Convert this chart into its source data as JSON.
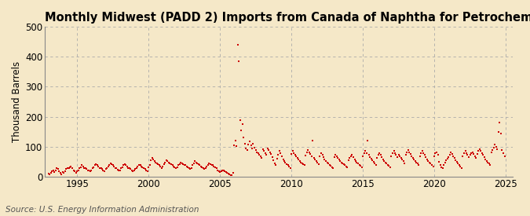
{
  "title": "Monthly Midwest (PADD 2) Imports from Canada of Naphtha for Petrochemical Feedstock Use",
  "ylabel": "Thousand Barrels",
  "source": "Source: U.S. Energy Information Administration",
  "background_color": "#f5e8c8",
  "plot_background_color": "#f5e8c8",
  "marker_color": "#cc0000",
  "grid_color": "#aaaaaa",
  "ylim": [
    0,
    500
  ],
  "yticks": [
    0,
    100,
    200,
    300,
    400,
    500
  ],
  "xlim_start": 1992.75,
  "xlim_end": 2025.5,
  "xticks": [
    1995,
    2000,
    2005,
    2010,
    2015,
    2020,
    2025
  ],
  "title_fontsize": 10.5,
  "axis_fontsize": 8.5,
  "source_fontsize": 7.5,
  "marker_size": 4,
  "data_xy": [
    [
      1993.0,
      10
    ],
    [
      1993.08,
      8
    ],
    [
      1993.17,
      12
    ],
    [
      1993.25,
      18
    ],
    [
      1993.33,
      22
    ],
    [
      1993.42,
      15
    ],
    [
      1993.5,
      20
    ],
    [
      1993.58,
      28
    ],
    [
      1993.67,
      25
    ],
    [
      1993.75,
      18
    ],
    [
      1993.83,
      12
    ],
    [
      1993.92,
      8
    ],
    [
      1994.0,
      15
    ],
    [
      1994.08,
      12
    ],
    [
      1994.17,
      18
    ],
    [
      1994.25,
      25
    ],
    [
      1994.33,
      30
    ],
    [
      1994.42,
      28
    ],
    [
      1994.5,
      32
    ],
    [
      1994.58,
      35
    ],
    [
      1994.67,
      28
    ],
    [
      1994.75,
      22
    ],
    [
      1994.83,
      18
    ],
    [
      1994.92,
      14
    ],
    [
      1995.0,
      18
    ],
    [
      1995.08,
      22
    ],
    [
      1995.17,
      28
    ],
    [
      1995.25,
      32
    ],
    [
      1995.33,
      38
    ],
    [
      1995.42,
      35
    ],
    [
      1995.5,
      30
    ],
    [
      1995.58,
      28
    ],
    [
      1995.67,
      25
    ],
    [
      1995.75,
      22
    ],
    [
      1995.83,
      20
    ],
    [
      1995.92,
      18
    ],
    [
      1996.0,
      22
    ],
    [
      1996.08,
      28
    ],
    [
      1996.17,
      32
    ],
    [
      1996.25,
      38
    ],
    [
      1996.33,
      42
    ],
    [
      1996.42,
      38
    ],
    [
      1996.5,
      35
    ],
    [
      1996.58,
      30
    ],
    [
      1996.67,
      28
    ],
    [
      1996.75,
      25
    ],
    [
      1996.83,
      22
    ],
    [
      1996.92,
      18
    ],
    [
      1997.0,
      25
    ],
    [
      1997.08,
      30
    ],
    [
      1997.17,
      35
    ],
    [
      1997.25,
      40
    ],
    [
      1997.33,
      45
    ],
    [
      1997.42,
      42
    ],
    [
      1997.5,
      38
    ],
    [
      1997.58,
      35
    ],
    [
      1997.67,
      30
    ],
    [
      1997.75,
      28
    ],
    [
      1997.83,
      24
    ],
    [
      1997.92,
      20
    ],
    [
      1998.0,
      22
    ],
    [
      1998.08,
      28
    ],
    [
      1998.17,
      32
    ],
    [
      1998.25,
      38
    ],
    [
      1998.33,
      42
    ],
    [
      1998.42,
      40
    ],
    [
      1998.5,
      35
    ],
    [
      1998.58,
      30
    ],
    [
      1998.67,
      28
    ],
    [
      1998.75,
      25
    ],
    [
      1998.83,
      22
    ],
    [
      1998.92,
      18
    ],
    [
      1999.0,
      20
    ],
    [
      1999.08,
      25
    ],
    [
      1999.17,
      30
    ],
    [
      1999.25,
      35
    ],
    [
      1999.33,
      40
    ],
    [
      1999.42,
      38
    ],
    [
      1999.5,
      35
    ],
    [
      1999.58,
      32
    ],
    [
      1999.67,
      28
    ],
    [
      1999.75,
      25
    ],
    [
      1999.83,
      22
    ],
    [
      1999.92,
      18
    ],
    [
      2000.0,
      32
    ],
    [
      2000.08,
      40
    ],
    [
      2000.17,
      55
    ],
    [
      2000.25,
      62
    ],
    [
      2000.33,
      58
    ],
    [
      2000.42,
      52
    ],
    [
      2000.5,
      48
    ],
    [
      2000.58,
      45
    ],
    [
      2000.67,
      42
    ],
    [
      2000.75,
      38
    ],
    [
      2000.83,
      35
    ],
    [
      2000.92,
      30
    ],
    [
      2001.0,
      35
    ],
    [
      2001.08,
      42
    ],
    [
      2001.17,
      48
    ],
    [
      2001.25,
      55
    ],
    [
      2001.33,
      52
    ],
    [
      2001.42,
      48
    ],
    [
      2001.5,
      45
    ],
    [
      2001.58,
      42
    ],
    [
      2001.67,
      38
    ],
    [
      2001.75,
      35
    ],
    [
      2001.83,
      32
    ],
    [
      2001.92,
      28
    ],
    [
      2002.0,
      32
    ],
    [
      2002.08,
      38
    ],
    [
      2002.17,
      42
    ],
    [
      2002.25,
      48
    ],
    [
      2002.33,
      45
    ],
    [
      2002.42,
      42
    ],
    [
      2002.5,
      40
    ],
    [
      2002.58,
      38
    ],
    [
      2002.67,
      35
    ],
    [
      2002.75,
      32
    ],
    [
      2002.83,
      28
    ],
    [
      2002.92,
      25
    ],
    [
      2003.0,
      30
    ],
    [
      2003.08,
      38
    ],
    [
      2003.17,
      45
    ],
    [
      2003.25,
      52
    ],
    [
      2003.33,
      48
    ],
    [
      2003.42,
      45
    ],
    [
      2003.5,
      42
    ],
    [
      2003.58,
      38
    ],
    [
      2003.67,
      35
    ],
    [
      2003.75,
      32
    ],
    [
      2003.83,
      28
    ],
    [
      2003.92,
      25
    ],
    [
      2004.0,
      28
    ],
    [
      2004.08,
      35
    ],
    [
      2004.17,
      40
    ],
    [
      2004.25,
      45
    ],
    [
      2004.33,
      42
    ],
    [
      2004.42,
      40
    ],
    [
      2004.5,
      38
    ],
    [
      2004.58,
      35
    ],
    [
      2004.67,
      32
    ],
    [
      2004.75,
      28
    ],
    [
      2004.83,
      22
    ],
    [
      2004.92,
      18
    ],
    [
      2005.0,
      15
    ],
    [
      2005.08,
      18
    ],
    [
      2005.17,
      20
    ],
    [
      2005.25,
      22
    ],
    [
      2005.33,
      18
    ],
    [
      2005.42,
      15
    ],
    [
      2005.5,
      12
    ],
    [
      2005.58,
      10
    ],
    [
      2005.67,
      8
    ],
    [
      2005.75,
      6
    ],
    [
      2005.83,
      5
    ],
    [
      2005.92,
      12
    ],
    [
      2006.0,
      105
    ],
    [
      2006.08,
      120
    ],
    [
      2006.17,
      102
    ],
    [
      2006.25,
      440
    ],
    [
      2006.33,
      385
    ],
    [
      2006.42,
      188
    ],
    [
      2006.5,
      155
    ],
    [
      2006.58,
      175
    ],
    [
      2006.67,
      130
    ],
    [
      2006.75,
      110
    ],
    [
      2006.83,
      95
    ],
    [
      2006.92,
      88
    ],
    [
      2007.0,
      108
    ],
    [
      2007.08,
      118
    ],
    [
      2007.17,
      105
    ],
    [
      2007.25,
      95
    ],
    [
      2007.33,
      110
    ],
    [
      2007.42,
      98
    ],
    [
      2007.5,
      88
    ],
    [
      2007.58,
      82
    ],
    [
      2007.67,
      78
    ],
    [
      2007.75,
      72
    ],
    [
      2007.83,
      68
    ],
    [
      2007.92,
      62
    ],
    [
      2008.0,
      92
    ],
    [
      2008.08,
      85
    ],
    [
      2008.17,
      78
    ],
    [
      2008.25,
      72
    ],
    [
      2008.33,
      95
    ],
    [
      2008.42,
      88
    ],
    [
      2008.5,
      82
    ],
    [
      2008.58,
      75
    ],
    [
      2008.67,
      65
    ],
    [
      2008.75,
      55
    ],
    [
      2008.83,
      45
    ],
    [
      2008.92,
      38
    ],
    [
      2009.0,
      60
    ],
    [
      2009.08,
      72
    ],
    [
      2009.17,
      85
    ],
    [
      2009.25,
      78
    ],
    [
      2009.33,
      68
    ],
    [
      2009.42,
      58
    ],
    [
      2009.5,
      52
    ],
    [
      2009.58,
      48
    ],
    [
      2009.67,
      42
    ],
    [
      2009.75,
      38
    ],
    [
      2009.83,
      35
    ],
    [
      2009.92,
      30
    ],
    [
      2010.0,
      75
    ],
    [
      2010.08,
      85
    ],
    [
      2010.17,
      78
    ],
    [
      2010.25,
      72
    ],
    [
      2010.33,
      68
    ],
    [
      2010.42,
      62
    ],
    [
      2010.5,
      58
    ],
    [
      2010.58,
      52
    ],
    [
      2010.67,
      48
    ],
    [
      2010.75,
      45
    ],
    [
      2010.83,
      42
    ],
    [
      2010.92,
      38
    ],
    [
      2011.0,
      70
    ],
    [
      2011.08,
      80
    ],
    [
      2011.17,
      90
    ],
    [
      2011.25,
      82
    ],
    [
      2011.33,
      75
    ],
    [
      2011.42,
      68
    ],
    [
      2011.5,
      120
    ],
    [
      2011.58,
      62
    ],
    [
      2011.67,
      58
    ],
    [
      2011.75,
      52
    ],
    [
      2011.83,
      48
    ],
    [
      2011.92,
      42
    ],
    [
      2012.0,
      68
    ],
    [
      2012.08,
      78
    ],
    [
      2012.17,
      72
    ],
    [
      2012.25,
      65
    ],
    [
      2012.33,
      58
    ],
    [
      2012.42,
      52
    ],
    [
      2012.5,
      48
    ],
    [
      2012.58,
      44
    ],
    [
      2012.67,
      40
    ],
    [
      2012.75,
      36
    ],
    [
      2012.83,
      32
    ],
    [
      2012.92,
      28
    ],
    [
      2013.0,
      65
    ],
    [
      2013.08,
      72
    ],
    [
      2013.17,
      68
    ],
    [
      2013.25,
      62
    ],
    [
      2013.33,
      58
    ],
    [
      2013.42,
      52
    ],
    [
      2013.5,
      48
    ],
    [
      2013.58,
      45
    ],
    [
      2013.67,
      42
    ],
    [
      2013.75,
      38
    ],
    [
      2013.83,
      35
    ],
    [
      2013.92,
      32
    ],
    [
      2014.0,
      55
    ],
    [
      2014.08,
      62
    ],
    [
      2014.17,
      68
    ],
    [
      2014.25,
      72
    ],
    [
      2014.33,
      65
    ],
    [
      2014.42,
      58
    ],
    [
      2014.5,
      52
    ],
    [
      2014.58,
      48
    ],
    [
      2014.67,
      44
    ],
    [
      2014.75,
      40
    ],
    [
      2014.83,
      36
    ],
    [
      2014.92,
      32
    ],
    [
      2015.0,
      68
    ],
    [
      2015.08,
      78
    ],
    [
      2015.17,
      85
    ],
    [
      2015.25,
      78
    ],
    [
      2015.33,
      120
    ],
    [
      2015.42,
      72
    ],
    [
      2015.5,
      65
    ],
    [
      2015.58,
      60
    ],
    [
      2015.67,
      55
    ],
    [
      2015.75,
      50
    ],
    [
      2015.83,
      45
    ],
    [
      2015.92,
      40
    ],
    [
      2016.0,
      62
    ],
    [
      2016.08,
      72
    ],
    [
      2016.17,
      78
    ],
    [
      2016.25,
      72
    ],
    [
      2016.33,
      65
    ],
    [
      2016.42,
      58
    ],
    [
      2016.5,
      52
    ],
    [
      2016.58,
      48
    ],
    [
      2016.67,
      44
    ],
    [
      2016.75,
      40
    ],
    [
      2016.83,
      36
    ],
    [
      2016.92,
      32
    ],
    [
      2017.0,
      68
    ],
    [
      2017.08,
      78
    ],
    [
      2017.17,
      85
    ],
    [
      2017.25,
      78
    ],
    [
      2017.33,
      72
    ],
    [
      2017.42,
      65
    ],
    [
      2017.5,
      72
    ],
    [
      2017.58,
      68
    ],
    [
      2017.67,
      62
    ],
    [
      2017.75,
      58
    ],
    [
      2017.83,
      52
    ],
    [
      2017.92,
      45
    ],
    [
      2018.0,
      72
    ],
    [
      2018.08,
      82
    ],
    [
      2018.17,
      88
    ],
    [
      2018.25,
      80
    ],
    [
      2018.33,
      75
    ],
    [
      2018.42,
      68
    ],
    [
      2018.5,
      62
    ],
    [
      2018.58,
      58
    ],
    [
      2018.67,
      52
    ],
    [
      2018.75,
      48
    ],
    [
      2018.83,
      44
    ],
    [
      2018.92,
      40
    ],
    [
      2019.0,
      68
    ],
    [
      2019.08,
      78
    ],
    [
      2019.17,
      85
    ],
    [
      2019.25,
      78
    ],
    [
      2019.33,
      72
    ],
    [
      2019.42,
      65
    ],
    [
      2019.5,
      58
    ],
    [
      2019.58,
      52
    ],
    [
      2019.67,
      48
    ],
    [
      2019.75,
      44
    ],
    [
      2019.83,
      40
    ],
    [
      2019.92,
      35
    ],
    [
      2020.0,
      68
    ],
    [
      2020.08,
      78
    ],
    [
      2020.17,
      82
    ],
    [
      2020.25,
      72
    ],
    [
      2020.33,
      50
    ],
    [
      2020.42,
      38
    ],
    [
      2020.5,
      32
    ],
    [
      2020.58,
      28
    ],
    [
      2020.67,
      38
    ],
    [
      2020.75,
      48
    ],
    [
      2020.83,
      55
    ],
    [
      2020.92,
      60
    ],
    [
      2021.0,
      65
    ],
    [
      2021.08,
      72
    ],
    [
      2021.17,
      80
    ],
    [
      2021.25,
      75
    ],
    [
      2021.33,
      68
    ],
    [
      2021.42,
      62
    ],
    [
      2021.5,
      55
    ],
    [
      2021.58,
      50
    ],
    [
      2021.67,
      45
    ],
    [
      2021.75,
      40
    ],
    [
      2021.83,
      35
    ],
    [
      2021.92,
      30
    ],
    [
      2022.0,
      68
    ],
    [
      2022.08,
      78
    ],
    [
      2022.17,
      85
    ],
    [
      2022.25,
      78
    ],
    [
      2022.33,
      72
    ],
    [
      2022.42,
      65
    ],
    [
      2022.5,
      72
    ],
    [
      2022.58,
      78
    ],
    [
      2022.67,
      82
    ],
    [
      2022.75,
      75
    ],
    [
      2022.83,
      68
    ],
    [
      2022.92,
      62
    ],
    [
      2023.0,
      75
    ],
    [
      2023.08,
      85
    ],
    [
      2023.17,
      92
    ],
    [
      2023.25,
      85
    ],
    [
      2023.33,
      78
    ],
    [
      2023.42,
      72
    ],
    [
      2023.5,
      65
    ],
    [
      2023.58,
      58
    ],
    [
      2023.67,
      52
    ],
    [
      2023.75,
      48
    ],
    [
      2023.83,
      44
    ],
    [
      2023.92,
      40
    ],
    [
      2024.0,
      82
    ],
    [
      2024.08,
      90
    ],
    [
      2024.17,
      98
    ],
    [
      2024.25,
      108
    ],
    [
      2024.33,
      100
    ],
    [
      2024.42,
      92
    ],
    [
      2024.5,
      148
    ],
    [
      2024.58,
      180
    ],
    [
      2024.67,
      145
    ],
    [
      2024.75,
      88
    ],
    [
      2024.83,
      78
    ],
    [
      2024.92,
      68
    ]
  ]
}
